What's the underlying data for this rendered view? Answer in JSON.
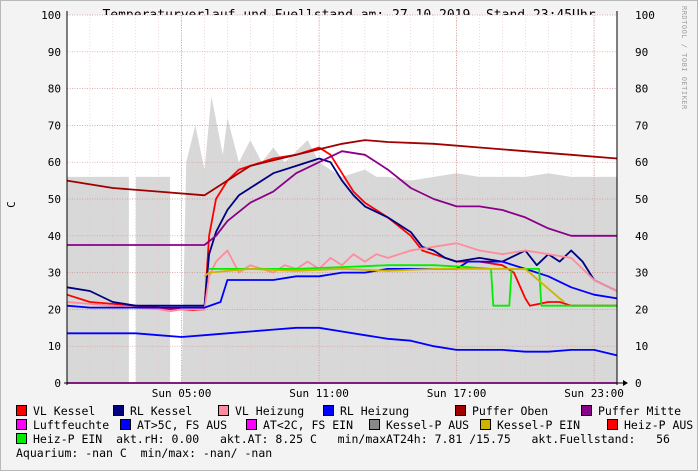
{
  "chart_data": {
    "type": "line",
    "title": "Temperaturverlauf und Fuellstand am: 27.10.2019, Stand 23:45Uhr",
    "side_label": "RRDTOOL / TOBI OETIKER",
    "ylabel": "C",
    "ylim": [
      0,
      100
    ],
    "xlim": [
      0,
      24
    ],
    "y_ticks": [
      0,
      10,
      20,
      30,
      40,
      50,
      60,
      70,
      80,
      90,
      100
    ],
    "x_ticks": [
      {
        "x": 5,
        "label": "Sun 05:00"
      },
      {
        "x": 11,
        "label": "Sun 11:00"
      },
      {
        "x": 17,
        "label": "Sun 17:00"
      },
      {
        "x": 23,
        "label": "Sun 23:00"
      }
    ],
    "grid": true,
    "legend_position": "bottom",
    "area": {
      "name": "Luftfeuchte background",
      "color": "#d8d8d8",
      "x": [
        0,
        2.7,
        2.7,
        3.0,
        3.0,
        4.5,
        4.5,
        5.0,
        5.2,
        5.6,
        6.0,
        6.3,
        6.8,
        7.0,
        7.5,
        8.0,
        8.5,
        9.0,
        9.5,
        10.0,
        10.5,
        11.0,
        11.5,
        12.0,
        12.5,
        13.0,
        13.5,
        14.0,
        15.0,
        16.0,
        17.0,
        18.0,
        19.0,
        20.0,
        21.0,
        22.0,
        23.0,
        24.0
      ],
      "values": [
        56,
        56,
        0,
        0,
        56,
        56,
        0,
        0,
        60,
        70,
        58,
        78,
        62,
        72,
        60,
        66,
        60,
        64,
        60,
        63,
        66,
        60,
        58,
        56,
        57,
        58,
        56,
        56,
        55,
        56,
        57,
        56,
        56,
        56,
        57,
        56,
        56,
        56
      ]
    },
    "series": [
      {
        "name": "VL Kessel",
        "color": "#ff0000",
        "x": [
          0,
          1,
          2,
          3,
          4,
          4.5,
          5,
          5.5,
          6.0,
          6.2,
          6.5,
          7,
          7.5,
          8,
          8.5,
          9,
          10,
          11,
          11.5,
          12,
          12.5,
          13,
          14,
          15,
          15.5,
          16,
          16.5,
          17,
          18,
          19,
          19.5,
          20,
          20.2,
          21,
          21.5,
          22,
          22.5,
          23,
          24
        ],
        "values": [
          24,
          22,
          21.5,
          21,
          20.5,
          20,
          20,
          19.8,
          20,
          40,
          50,
          55,
          58,
          59,
          60,
          61,
          62,
          64,
          62,
          57,
          52,
          49,
          45,
          40,
          36,
          35,
          34,
          33,
          33,
          32,
          30,
          23,
          21,
          22,
          22,
          21,
          21,
          21,
          21
        ]
      },
      {
        "name": "RL Kessel",
        "color": "#000080",
        "x": [
          0,
          1,
          2,
          3,
          4,
          5,
          6,
          6.2,
          6.5,
          7,
          7.5,
          8,
          8.5,
          9,
          10,
          11,
          11.5,
          12,
          12.5,
          13,
          14,
          15,
          15.5,
          16,
          16.5,
          17,
          18,
          19,
          20,
          20.5,
          21,
          21.5,
          22,
          22.5,
          23,
          24
        ],
        "values": [
          26,
          25,
          22,
          21,
          21,
          21,
          21,
          35,
          41,
          47,
          51,
          53,
          55,
          57,
          59,
          61,
          60,
          55,
          51,
          48,
          45,
          41,
          37,
          36,
          34,
          33,
          34,
          33,
          36,
          32,
          35,
          33,
          36,
          33,
          28,
          25
        ]
      },
      {
        "name": "VL Heizung",
        "color": "#ff8c9c",
        "x": [
          0,
          1,
          2,
          3,
          4,
          4.5,
          5,
          6,
          6.2,
          6.5,
          7,
          7.5,
          8,
          8.5,
          9,
          9.5,
          10,
          10.5,
          11,
          11.5,
          12,
          12.5,
          13,
          13.5,
          14,
          15,
          16,
          17,
          17.5,
          18,
          19,
          20,
          21,
          22,
          23,
          24
        ],
        "values": [
          22,
          21.5,
          21,
          20.5,
          20,
          19.5,
          20,
          20,
          29,
          33,
          36,
          30,
          32,
          31,
          30,
          32,
          31,
          33,
          31,
          34,
          32,
          35,
          33,
          35,
          34,
          36,
          37,
          38,
          37,
          36,
          35,
          36,
          35,
          34,
          28,
          25
        ]
      },
      {
        "name": "RL Heizung",
        "color": "#0000ff",
        "x": [
          0,
          1,
          2,
          3,
          4,
          5,
          6,
          6.7,
          7,
          8,
          9,
          10,
          11,
          12,
          13,
          14,
          15,
          16,
          17,
          17.5,
          18,
          19,
          20,
          21,
          22,
          23,
          24
        ],
        "values": [
          21,
          20.5,
          20.5,
          20.5,
          20.5,
          20.5,
          20.5,
          22,
          28,
          28,
          28,
          29,
          29,
          30,
          30,
          31,
          31,
          31,
          31,
          33,
          33,
          33,
          31,
          29,
          26,
          24,
          23
        ]
      },
      {
        "name": "Puffer Oben",
        "color": "#a00000",
        "x": [
          0,
          2,
          4,
          6,
          8,
          10,
          12,
          13,
          14,
          16,
          18,
          20,
          22,
          24
        ],
        "values": [
          55,
          53,
          52,
          51,
          59,
          62,
          65,
          66,
          65.5,
          65,
          64,
          63,
          62,
          61
        ]
      },
      {
        "name": "Puffer Mitte",
        "color": "#8b008b",
        "x": [
          0,
          2,
          4,
          6,
          6.5,
          7,
          8,
          9,
          10,
          11,
          12,
          13,
          14,
          15,
          16,
          17,
          18,
          19,
          20,
          21,
          22,
          23,
          24
        ],
        "values": [
          37.5,
          37.5,
          37.5,
          37.5,
          40,
          44,
          49,
          52,
          57,
          60,
          63,
          62,
          58,
          53,
          50,
          48,
          48,
          47,
          45,
          42,
          40,
          40,
          40
        ]
      },
      {
        "name": "AT>5C, FS AUS",
        "color": "#0000ff",
        "x": [
          0,
          1,
          2,
          3,
          4,
          5,
          6,
          7,
          8,
          9,
          10,
          11,
          12,
          13,
          14,
          15,
          16,
          17,
          18,
          19,
          20,
          21,
          22,
          23,
          24
        ],
        "values": [
          13.5,
          13.5,
          13.5,
          13.5,
          13,
          12.5,
          13,
          13.5,
          14,
          14.5,
          15,
          15,
          14,
          13,
          12,
          11.5,
          10,
          9,
          9,
          9,
          8.5,
          8.5,
          9,
          9,
          7.5
        ]
      },
      {
        "name": "Heiz-P EIN",
        "color": "#00ee00",
        "x": [
          6.2,
          8,
          10,
          12,
          14,
          16,
          17.5,
          18.5,
          18.6,
          19.3,
          19.4,
          19.6,
          20.6,
          20.7,
          20.8,
          20.9,
          24
        ],
        "values": [
          31,
          31,
          31,
          31.5,
          32,
          32,
          31.5,
          31,
          21,
          21,
          31,
          31,
          31,
          21,
          21,
          21,
          21
        ]
      },
      {
        "name": "Kessel-P EIN",
        "color": "#ccb400",
        "x": [
          6.0,
          6.2,
          8,
          10,
          12,
          14,
          16,
          18,
          20,
          21.5,
          21.7
        ],
        "values": [
          29,
          30,
          31,
          30.5,
          31,
          30.5,
          31,
          31,
          31,
          23,
          22
        ]
      },
      {
        "name": "Luftfeuchte",
        "color": "#ff00ff",
        "x": [
          0,
          24
        ],
        "values": [
          0,
          0
        ]
      }
    ]
  },
  "legend": [
    [
      {
        "label": "VL Kessel",
        "color": "#ff0000"
      },
      {
        "label": "RL Kessel",
        "color": "#000080"
      },
      {
        "label": "VL Heizung",
        "color": "#ff8c9c"
      },
      {
        "label": "RL Heizung",
        "color": "#0000ff"
      },
      {
        "label": "Puffer Oben",
        "color": "#a00000"
      },
      {
        "label": "Puffer Mitte",
        "color": "#8b008b"
      }
    ],
    [
      {
        "label": "Luftfeuchte",
        "color": "#ff00ff"
      },
      {
        "label": "AT>5C, FS AUS",
        "color": "#0000ff"
      },
      {
        "label": "AT<2C, FS EIN",
        "color": "#ff00ff"
      },
      {
        "label": "Kessel-P AUS",
        "color": "#888888"
      },
      {
        "label": "Kessel-P EIN",
        "color": "#ccb400"
      },
      {
        "label": "Heiz-P AUS",
        "color": "#ff0000"
      }
    ]
  ],
  "status": {
    "heizp_label": "Heiz-P EIN",
    "heizp_color": "#00ee00",
    "line3": "  akt.rH: 0.00   akt.AT: 8.25 C   min/maxAT24h: 7.81 /15.75   akt.Fuellstand:   56",
    "line4": "Aquarium: -nan C  min/max: -nan/ -nan"
  }
}
